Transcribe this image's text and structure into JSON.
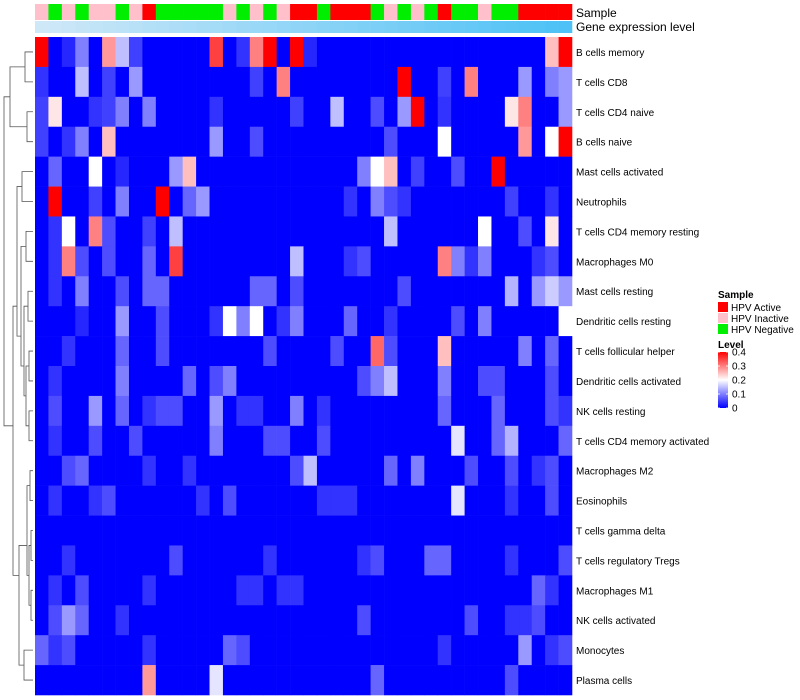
{
  "chart_data": {
    "type": "heatmap",
    "title": "",
    "annotation_rows": [
      "Sample",
      "Gene expression level"
    ],
    "sample_groups": [
      "I",
      "N",
      "I",
      "N",
      "I",
      "I",
      "N",
      "I",
      "A",
      "N",
      "N",
      "N",
      "N",
      "N",
      "I",
      "N",
      "I",
      "N",
      "I",
      "A",
      "A",
      "N",
      "A",
      "A",
      "A",
      "N",
      "I",
      "N",
      "I",
      "N",
      "A",
      "N",
      "N",
      "I",
      "N",
      "N",
      "A",
      "A",
      "A",
      "A"
    ],
    "expression_level": [
      0.0,
      0.02,
      0.04,
      0.06,
      0.08,
      0.1,
      0.12,
      0.14,
      0.16,
      0.18,
      0.2,
      0.22,
      0.24,
      0.26,
      0.28,
      0.3,
      0.32,
      0.34,
      0.36,
      0.38,
      0.4,
      0.42,
      0.44,
      0.46,
      0.48,
      0.5,
      0.52,
      0.54,
      0.56,
      0.58,
      0.6,
      0.62,
      0.64,
      0.66,
      0.68,
      0.7,
      0.72,
      0.74,
      0.76,
      0.78
    ],
    "rows": [
      "B cells memory",
      "T cells CD8",
      "T cells CD4 naive",
      "B cells naive",
      "Mast cells activated",
      "Neutrophils",
      "T cells CD4 memory resting",
      "Macrophages M0",
      "Mast cells resting",
      "Dendritic cells resting",
      "T cells follicular helper",
      "Dendritic cells activated",
      "NK cells resting",
      "T cells CD4 memory activated",
      "Macrophages M2",
      "Eosinophils",
      "T cells gamma delta",
      "T cells regulatory  Tregs",
      "Macrophages M1",
      "NK cells activated",
      "Monocytes",
      "Plasma cells"
    ],
    "values": [
      [
        0.4,
        0,
        0.03,
        0.1,
        0,
        0.28,
        0.15,
        0.05,
        0,
        0,
        0,
        0,
        0,
        0.35,
        0,
        0.04,
        0.3,
        0.4,
        0,
        0.4,
        0.03,
        0,
        0,
        0,
        0,
        0,
        0,
        0,
        0,
        0,
        0,
        0,
        0,
        0,
        0,
        0,
        0,
        0,
        0.25,
        0.4
      ],
      [
        0.04,
        0,
        0,
        0.15,
        0,
        0.05,
        0,
        0.12,
        0,
        0,
        0,
        0,
        0,
        0,
        0,
        0,
        0.05,
        0,
        0.3,
        0,
        0,
        0,
        0,
        0,
        0,
        0,
        0,
        0.4,
        0,
        0,
        0.05,
        0,
        0.3,
        0,
        0,
        0,
        0.12,
        0,
        0.1,
        0.12
      ],
      [
        0.05,
        0.22,
        0,
        0,
        0.04,
        0.05,
        0.1,
        0,
        0.1,
        0,
        0,
        0,
        0,
        0.04,
        0,
        0,
        0,
        0,
        0,
        0.05,
        0,
        0,
        0.15,
        0,
        0,
        0.06,
        0,
        0.12,
        0.4,
        0,
        0.04,
        0,
        0,
        0,
        0,
        0.22,
        0.3,
        0,
        0,
        0.12
      ],
      [
        0.05,
        0,
        0.04,
        0.1,
        0,
        0.25,
        0,
        0,
        0,
        0,
        0,
        0,
        0,
        0.12,
        0,
        0,
        0.06,
        0,
        0,
        0,
        0,
        0,
        0,
        0,
        0,
        0,
        0.06,
        0,
        0,
        0,
        0.2,
        0,
        0,
        0,
        0,
        0,
        0.28,
        0,
        0.2,
        0.4
      ],
      [
        0,
        0.08,
        0,
        0,
        0.2,
        0,
        0.03,
        0,
        0,
        0,
        0.12,
        0.25,
        0,
        0,
        0,
        0,
        0,
        0,
        0,
        0,
        0,
        0,
        0,
        0,
        0.1,
        0.2,
        0.25,
        0,
        0.05,
        0,
        0,
        0.06,
        0,
        0,
        0.4,
        0,
        0,
        0,
        0,
        0
      ],
      [
        0,
        0.4,
        0,
        0,
        0.05,
        0,
        0.1,
        0,
        0,
        0.4,
        0,
        0.08,
        0.12,
        0,
        0,
        0,
        0,
        0,
        0,
        0,
        0,
        0,
        0,
        0.04,
        0,
        0.1,
        0.06,
        0.04,
        0,
        0,
        0,
        0,
        0,
        0,
        0,
        0.05,
        0,
        0,
        0.04,
        0
      ],
      [
        0,
        0.04,
        0.2,
        0,
        0.3,
        0.06,
        0,
        0,
        0.05,
        0,
        0.15,
        0,
        0,
        0,
        0,
        0,
        0,
        0,
        0,
        0,
        0,
        0,
        0,
        0,
        0,
        0,
        0.15,
        0,
        0,
        0,
        0,
        0,
        0,
        0.2,
        0,
        0,
        0.06,
        0,
        0.22,
        0
      ],
      [
        0,
        0.04,
        0.3,
        0.06,
        0,
        0.06,
        0,
        0,
        0.08,
        0,
        0.35,
        0,
        0,
        0,
        0,
        0,
        0,
        0,
        0,
        0.15,
        0,
        0,
        0,
        0.04,
        0.06,
        0,
        0,
        0,
        0,
        0,
        0.3,
        0.1,
        0.04,
        0.1,
        0,
        0,
        0,
        0.04,
        0.06,
        0
      ],
      [
        0,
        0.04,
        0,
        0.1,
        0,
        0,
        0.06,
        0,
        0.08,
        0.08,
        0,
        0,
        0,
        0,
        0,
        0,
        0.08,
        0.08,
        0,
        0.06,
        0,
        0,
        0,
        0,
        0,
        0,
        0,
        0.06,
        0,
        0,
        0,
        0,
        0,
        0,
        0,
        0.14,
        0,
        0.12,
        0.16,
        0.12
      ],
      [
        0,
        0,
        0,
        0.03,
        0,
        0,
        0.12,
        0,
        0,
        0.06,
        0,
        0,
        0,
        0.04,
        0.2,
        0.1,
        0.2,
        0,
        0.04,
        0.1,
        0,
        0,
        0,
        0.08,
        0,
        0,
        0.04,
        0,
        0,
        0,
        0,
        0.06,
        0,
        0.1,
        0,
        0,
        0,
        0,
        0,
        0.2
      ],
      [
        0,
        0,
        0.04,
        0,
        0,
        0,
        0.08,
        0,
        0,
        0.06,
        0,
        0,
        0,
        0,
        0,
        0,
        0,
        0.06,
        0,
        0,
        0,
        0,
        0.06,
        0,
        0,
        0.32,
        0.06,
        0,
        0,
        0,
        0.25,
        0,
        0,
        0,
        0,
        0,
        0.1,
        0,
        0.08,
        0
      ],
      [
        0,
        0.04,
        0,
        0,
        0,
        0,
        0.1,
        0,
        0,
        0,
        0,
        0.08,
        0,
        0.06,
        0.1,
        0,
        0,
        0,
        0,
        0,
        0,
        0,
        0,
        0,
        0.06,
        0.1,
        0.15,
        0,
        0,
        0,
        0.1,
        0,
        0,
        0.06,
        0.06,
        0,
        0,
        0,
        0.06,
        0
      ],
      [
        0,
        0.06,
        0,
        0,
        0.12,
        0,
        0.08,
        0,
        0.04,
        0.06,
        0.06,
        0,
        0,
        0.12,
        0,
        0.04,
        0.04,
        0,
        0,
        0.1,
        0,
        0.04,
        0,
        0,
        0,
        0,
        0,
        0,
        0,
        0,
        0.08,
        0,
        0,
        0,
        0.08,
        0,
        0,
        0,
        0.06,
        0.04
      ],
      [
        0,
        0.04,
        0,
        0,
        0.06,
        0,
        0,
        0.06,
        0,
        0,
        0,
        0,
        0,
        0.1,
        0,
        0,
        0,
        0.06,
        0.06,
        0,
        0,
        0.06,
        0,
        0,
        0,
        0,
        0,
        0,
        0,
        0,
        0,
        0.18,
        0,
        0,
        0.08,
        0.14,
        0,
        0,
        0,
        0.08
      ],
      [
        0,
        0,
        0.06,
        0.08,
        0,
        0,
        0,
        0,
        0.04,
        0,
        0,
        0.04,
        0,
        0,
        0,
        0,
        0,
        0,
        0,
        0.06,
        0.15,
        0,
        0,
        0,
        0,
        0,
        0.08,
        0,
        0.1,
        0,
        0,
        0,
        0.06,
        0,
        0,
        0.06,
        0,
        0.04,
        0.06,
        0
      ],
      [
        0,
        0.04,
        0,
        0,
        0.04,
        0.06,
        0,
        0,
        0,
        0,
        0,
        0,
        0.04,
        0,
        0.06,
        0,
        0,
        0,
        0,
        0,
        0,
        0.04,
        0.04,
        0.04,
        0,
        0,
        0,
        0,
        0,
        0,
        0,
        0.18,
        0,
        0,
        0,
        0.04,
        0,
        0,
        0.06,
        0
      ],
      [
        0,
        0,
        0,
        0,
        0,
        0,
        0,
        0,
        0,
        0,
        0,
        0,
        0,
        0,
        0,
        0,
        0,
        0,
        0,
        0,
        0,
        0,
        0,
        0,
        0,
        0,
        0,
        0,
        0,
        0,
        0,
        0,
        0,
        0,
        0,
        0,
        0,
        0,
        0,
        0
      ],
      [
        0,
        0,
        0.04,
        0,
        0,
        0,
        0,
        0,
        0,
        0,
        0.06,
        0,
        0,
        0,
        0,
        0,
        0,
        0.04,
        0,
        0,
        0,
        0,
        0,
        0,
        0.04,
        0.06,
        0,
        0,
        0,
        0.08,
        0.08,
        0,
        0,
        0,
        0,
        0.04,
        0,
        0,
        0,
        0.06
      ],
      [
        0,
        0.04,
        0,
        0.06,
        0,
        0,
        0,
        0,
        0.04,
        0,
        0,
        0,
        0,
        0,
        0,
        0.04,
        0.04,
        0,
        0.04,
        0.04,
        0,
        0,
        0,
        0,
        0,
        0,
        0,
        0,
        0,
        0,
        0,
        0,
        0,
        0,
        0,
        0,
        0,
        0.08,
        0.04,
        0
      ],
      [
        0,
        0.06,
        0.12,
        0.08,
        0,
        0,
        0.04,
        0,
        0,
        0,
        0,
        0,
        0,
        0,
        0,
        0,
        0,
        0,
        0,
        0,
        0,
        0,
        0,
        0,
        0.06,
        0,
        0,
        0,
        0,
        0,
        0,
        0,
        0.06,
        0,
        0,
        0.04,
        0.04,
        0.06,
        0,
        0
      ],
      [
        0.08,
        0.04,
        0.06,
        0,
        0,
        0,
        0,
        0,
        0.04,
        0,
        0,
        0,
        0,
        0,
        0.08,
        0.06,
        0,
        0,
        0,
        0,
        0,
        0,
        0,
        0,
        0,
        0,
        0,
        0,
        0,
        0,
        0.04,
        0,
        0,
        0,
        0,
        0,
        0.12,
        0,
        0.04,
        0.06
      ],
      [
        0,
        0,
        0,
        0,
        0,
        0,
        0,
        0,
        0.28,
        0,
        0,
        0,
        0,
        0.18,
        0,
        0,
        0,
        0,
        0,
        0,
        0,
        0,
        0,
        0,
        0,
        0.08,
        0,
        0,
        0,
        0,
        0,
        0,
        0,
        0,
        0,
        0.06,
        0,
        0,
        0,
        0
      ]
    ],
    "legend": {
      "sample_title": "Sample",
      "sample_entries": [
        {
          "key": "A",
          "label": "HPV Active",
          "color": "#ff0000"
        },
        {
          "key": "I",
          "label": "HPV Inactive",
          "color": "#ffc0cb"
        },
        {
          "key": "N",
          "label": "HPV Negative",
          "color": "#00ee00"
        }
      ],
      "level_title": "Level",
      "level_ticks": [
        {
          "value": 0.4,
          "label": "0.4"
        },
        {
          "value": 0.3,
          "label": "0.3"
        },
        {
          "value": 0.2,
          "label": "0.2"
        },
        {
          "value": 0.1,
          "label": "0.1"
        },
        {
          "value": 0,
          "label": "0"
        }
      ],
      "level_range": [
        0,
        0.4
      ]
    },
    "colors": {
      "low": "#0000ff",
      "mid": "#ffffff",
      "high": "#ff0000",
      "expr_low": "#cfe8f7",
      "expr_high": "#29b6f6",
      "dendrogram": "#555555"
    },
    "row_dendrogram": true
  }
}
